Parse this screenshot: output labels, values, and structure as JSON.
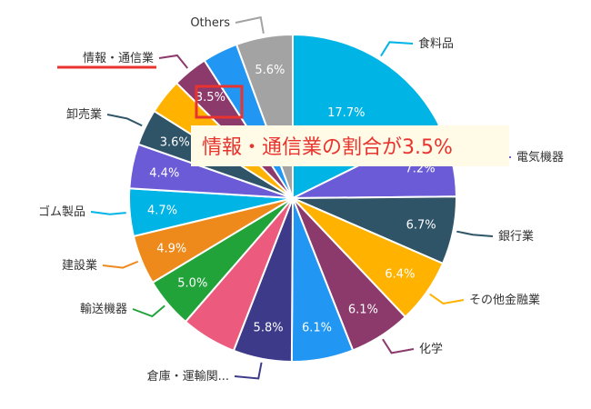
{
  "chart_data": {
    "type": "pie",
    "slices": [
      {
        "label": "食料品",
        "value": 17.7,
        "value_label": "17.7%",
        "color": "#00b4e6"
      },
      {
        "label": "電気機器",
        "value": 7.2,
        "value_label": "7.2%",
        "color": "#6b5bd6"
      },
      {
        "label": "銀行業",
        "value": 6.7,
        "value_label": "6.7%",
        "color": "#2f5468"
      },
      {
        "label": "その他金融業",
        "value": 6.4,
        "value_label": "6.4%",
        "color": "#ffb300"
      },
      {
        "label": "化学",
        "value": 6.1,
        "value_label": "6.1%",
        "color": "#8b3a6b"
      },
      {
        "label": "",
        "value": 6.1,
        "value_label": "6.1%",
        "color": "#2196f3"
      },
      {
        "label": "倉庫・運輸関...",
        "value": 5.8,
        "value_label": "5.8%",
        "color": "#3d3a8a"
      },
      {
        "label": "",
        "value": 5.5,
        "value_label": "",
        "color": "#ec5b7e"
      },
      {
        "label": "輸送機器",
        "value": 5.0,
        "value_label": "5.0%",
        "color": "#22a33a"
      },
      {
        "label": "建設業",
        "value": 4.9,
        "value_label": "4.9%",
        "color": "#ee8a1c"
      },
      {
        "label": "ゴム製品",
        "value": 4.7,
        "value_label": "4.7%",
        "color": "#00b4e6"
      },
      {
        "label": "",
        "value": 4.4,
        "value_label": "4.4%",
        "color": "#6b5bd6"
      },
      {
        "label": "卸売業",
        "value": 3.6,
        "value_label": "3.6%",
        "color": "#2f5468"
      },
      {
        "label": "",
        "value": 3.5,
        "value_label": "",
        "color": "#ffb300"
      },
      {
        "label": "情報・通信業",
        "value": 3.5,
        "value_label": "3.5%",
        "color": "#8b3a6b"
      },
      {
        "label": "",
        "value": 3.5,
        "value_label": "",
        "color": "#2196f3"
      },
      {
        "label": "Others",
        "value": 5.6,
        "value_label": "5.6%",
        "color": "#a3a3a3"
      }
    ],
    "highlight_color": "#e8332f"
  },
  "note": {
    "text": "情報・通信業の割合が3.5%"
  }
}
